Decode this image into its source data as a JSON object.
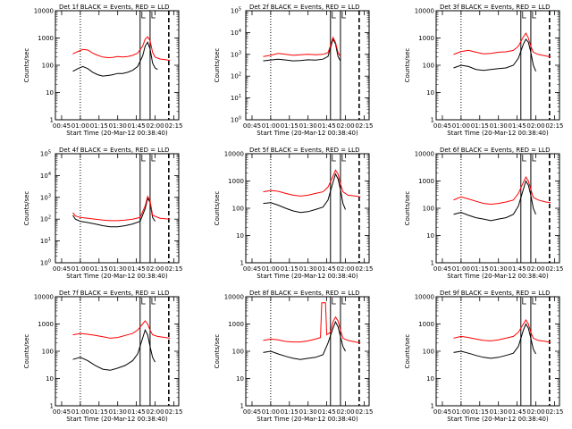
{
  "legend_suffix": "BLACK = Events, RED = LLD",
  "xlabel": "Start Time (20-Mar-12 00:38:40)",
  "ylabel": "Counts/sec",
  "xticks": [
    "00:45",
    "01:00",
    "01:15",
    "01:30",
    "01:45",
    "02:00",
    "02:15"
  ],
  "colors": {
    "events": "#000000",
    "lld": "#ff0000"
  },
  "chart_data": [
    {
      "type": "line",
      "title": "Det 1f",
      "xlabel": "Start Time (20-Mar-12 00:38:40)",
      "ylabel": "Counts/sec",
      "yscale": "log",
      "ylim": [
        1,
        10000
      ],
      "series": [
        {
          "name": "Events",
          "x": [
            54,
            58,
            62,
            66,
            70,
            74,
            78,
            82,
            86,
            90,
            94,
            98,
            102,
            106,
            110,
            112,
            114,
            116,
            118,
            120,
            122
          ],
          "y": [
            60,
            75,
            90,
            75,
            55,
            45,
            40,
            42,
            45,
            50,
            50,
            55,
            65,
            90,
            220,
            500,
            700,
            400,
            120,
            80,
            70
          ]
        },
        {
          "name": "LLD",
          "x": [
            54,
            58,
            62,
            66,
            70,
            74,
            78,
            82,
            86,
            90,
            94,
            98,
            102,
            106,
            110,
            112,
            114,
            116,
            118,
            120,
            124,
            128,
            132
          ],
          "y": [
            260,
            320,
            380,
            360,
            280,
            230,
            200,
            190,
            195,
            210,
            200,
            210,
            230,
            280,
            500,
            900,
            1100,
            800,
            300,
            200,
            170,
            160,
            150
          ]
        }
      ],
      "vlines_dotted": [
        60
      ],
      "vlines_solid": [
        108,
        116
      ],
      "vlines_dashed": [
        131
      ]
    },
    {
      "type": "line",
      "title": "Det 2f",
      "xlabel": "Start Time (20-Mar-12 00:38:40)",
      "ylabel": "Counts/sec",
      "yscale": "log",
      "ylim": [
        1,
        100000
      ],
      "series": [
        {
          "name": "Events",
          "x": [
            54,
            60,
            66,
            72,
            78,
            84,
            90,
            96,
            102,
            106,
            108,
            110,
            112,
            114,
            116
          ],
          "y": [
            500,
            550,
            600,
            550,
            500,
            520,
            560,
            540,
            600,
            800,
            2000,
            5000,
            3000,
            800,
            500
          ]
        },
        {
          "name": "LLD",
          "x": [
            54,
            60,
            66,
            72,
            78,
            84,
            90,
            96,
            102,
            106,
            108,
            110,
            112,
            114,
            116
          ],
          "y": [
            800,
            900,
            1100,
            1000,
            900,
            950,
            1000,
            950,
            1000,
            1200,
            2500,
            6000,
            3500,
            1200,
            800
          ]
        }
      ],
      "vlines_dotted": [
        60
      ],
      "vlines_solid": [
        108,
        116
      ],
      "vlines_dashed": [
        131
      ]
    },
    {
      "type": "line",
      "title": "Det 3f",
      "xlabel": "Start Time (20-Mar-12 00:38:40)",
      "ylabel": "Counts/sec",
      "yscale": "log",
      "ylim": [
        1,
        10000
      ],
      "series": [
        {
          "name": "Events",
          "x": [
            54,
            60,
            66,
            72,
            78,
            84,
            90,
            96,
            102,
            106,
            110,
            112,
            114,
            116,
            118,
            120
          ],
          "y": [
            80,
            100,
            90,
            70,
            65,
            70,
            75,
            80,
            100,
            180,
            600,
            900,
            700,
            300,
            100,
            60
          ]
        },
        {
          "name": "LLD",
          "x": [
            54,
            60,
            66,
            72,
            78,
            84,
            90,
            96,
            102,
            106,
            110,
            112,
            114,
            116,
            118,
            122,
            128,
            132
          ],
          "y": [
            250,
            320,
            350,
            300,
            260,
            270,
            300,
            310,
            350,
            500,
            1100,
            1500,
            1000,
            500,
            300,
            250,
            220,
            200
          ]
        }
      ],
      "vlines_dotted": [
        60
      ],
      "vlines_solid": [
        108,
        116
      ],
      "vlines_dashed": [
        131
      ]
    },
    {
      "type": "line",
      "title": "Det 4f",
      "xlabel": "Start Time (20-Mar-12 00:38:40)",
      "ylabel": "Counts/sec",
      "yscale": "log",
      "ylim": [
        1,
        100000
      ],
      "series": [
        {
          "name": "Events",
          "x": [
            54,
            56,
            60,
            66,
            72,
            78,
            84,
            90,
            96,
            102,
            108,
            112,
            114,
            116,
            118,
            120
          ],
          "y": [
            150,
            100,
            80,
            70,
            60,
            50,
            45,
            45,
            50,
            60,
            80,
            300,
            900,
            600,
            120,
            80
          ]
        },
        {
          "name": "LLD",
          "x": [
            54,
            56,
            60,
            66,
            72,
            78,
            84,
            90,
            96,
            102,
            108,
            112,
            114,
            116,
            118,
            124,
            132
          ],
          "y": [
            200,
            140,
            120,
            110,
            100,
            90,
            85,
            85,
            90,
            100,
            120,
            400,
            1100,
            700,
            150,
            110,
            100
          ]
        }
      ],
      "vlines_dotted": [
        60
      ],
      "vlines_solid": [
        108,
        116
      ],
      "vlines_dashed": [
        131
      ]
    },
    {
      "type": "line",
      "title": "Det 5f",
      "xlabel": "Start Time (20-Mar-12 00:38:40)",
      "ylabel": "Counts/sec",
      "yscale": "log",
      "ylim": [
        1,
        10000
      ],
      "series": [
        {
          "name": "Events",
          "x": [
            54,
            60,
            66,
            72,
            78,
            84,
            90,
            96,
            102,
            106,
            110,
            112,
            114,
            116,
            118,
            120
          ],
          "y": [
            150,
            160,
            130,
            100,
            80,
            70,
            75,
            90,
            110,
            200,
            900,
            1800,
            1200,
            500,
            150,
            90
          ]
        },
        {
          "name": "LLD",
          "x": [
            54,
            60,
            66,
            72,
            78,
            84,
            90,
            96,
            102,
            106,
            110,
            112,
            114,
            116,
            118,
            122,
            128,
            132
          ],
          "y": [
            400,
            450,
            420,
            350,
            300,
            280,
            300,
            350,
            400,
            600,
            1500,
            2500,
            1800,
            800,
            400,
            300,
            280,
            260
          ]
        }
      ],
      "vlines_dotted": [
        60
      ],
      "vlines_solid": [
        108,
        116
      ],
      "vlines_dashed": [
        131
      ]
    },
    {
      "type": "line",
      "title": "Det 6f",
      "xlabel": "Start Time (20-Mar-12 00:38:40)",
      "ylabel": "Counts/sec",
      "yscale": "log",
      "ylim": [
        1,
        10000
      ],
      "series": [
        {
          "name": "Events",
          "x": [
            54,
            60,
            66,
            72,
            78,
            84,
            90,
            96,
            102,
            106,
            110,
            112,
            114,
            116,
            118,
            120
          ],
          "y": [
            60,
            70,
            55,
            45,
            40,
            35,
            40,
            45,
            60,
            120,
            500,
            1000,
            700,
            300,
            100,
            60
          ]
        },
        {
          "name": "LLD",
          "x": [
            54,
            60,
            66,
            72,
            78,
            84,
            90,
            96,
            102,
            106,
            110,
            112,
            114,
            116,
            118,
            122,
            128,
            132
          ],
          "y": [
            200,
            260,
            220,
            180,
            150,
            140,
            150,
            170,
            200,
            350,
            900,
            1400,
            1000,
            500,
            250,
            200,
            170,
            160
          ]
        }
      ],
      "vlines_dotted": [
        60
      ],
      "vlines_solid": [
        108,
        116
      ],
      "vlines_dashed": [
        131
      ]
    },
    {
      "type": "line",
      "title": "Det 7f",
      "xlabel": "Start Time (20-Mar-12 00:38:40)",
      "ylabel": "Counts/sec",
      "yscale": "log",
      "ylim": [
        1,
        10000
      ],
      "series": [
        {
          "name": "Events",
          "x": [
            54,
            60,
            66,
            72,
            78,
            84,
            90,
            96,
            102,
            106,
            110,
            112,
            114,
            116,
            118,
            120
          ],
          "y": [
            50,
            60,
            45,
            30,
            22,
            20,
            24,
            30,
            45,
            80,
            300,
            600,
            400,
            150,
            60,
            40
          ]
        },
        {
          "name": "LLD",
          "x": [
            54,
            60,
            66,
            72,
            78,
            84,
            90,
            96,
            102,
            106,
            110,
            112,
            114,
            116,
            118,
            122,
            128,
            132
          ],
          "y": [
            400,
            450,
            420,
            380,
            340,
            300,
            320,
            380,
            450,
            600,
            1000,
            1300,
            1000,
            600,
            400,
            350,
            320,
            300
          ]
        }
      ],
      "vlines_dotted": [
        60
      ],
      "vlines_solid": [
        108,
        116
      ],
      "vlines_dashed": [
        131
      ]
    },
    {
      "type": "line",
      "title": "Det 8f",
      "xlabel": "Start Time (20-Mar-12 00:38:40)",
      "ylabel": "Counts/sec",
      "yscale": "log",
      "ylim": [
        1,
        10000
      ],
      "series": [
        {
          "name": "Events",
          "x": [
            54,
            60,
            66,
            72,
            78,
            84,
            90,
            96,
            102,
            106,
            110,
            112,
            114,
            116,
            118,
            120
          ],
          "y": [
            90,
            100,
            80,
            65,
            55,
            50,
            55,
            60,
            75,
            200,
            700,
            1200,
            800,
            350,
            150,
            100
          ]
        },
        {
          "name": "LLD",
          "x": [
            54,
            60,
            66,
            72,
            78,
            84,
            90,
            96,
            100,
            101,
            104,
            105,
            108,
            110,
            112,
            114,
            116,
            118,
            122,
            128,
            132
          ],
          "y": [
            250,
            280,
            260,
            230,
            220,
            220,
            240,
            280,
            320,
            6000,
            6000,
            400,
            500,
            1200,
            1800,
            1300,
            600,
            300,
            250,
            220,
            200
          ]
        }
      ],
      "vlines_dotted": [
        60
      ],
      "vlines_solid": [
        108,
        116
      ],
      "vlines_dashed": [
        131
      ]
    },
    {
      "type": "line",
      "title": "Det 9f",
      "xlabel": "Start Time (20-Mar-12 00:38:40)",
      "ylabel": "Counts/sec",
      "yscale": "log",
      "ylim": [
        1,
        10000
      ],
      "series": [
        {
          "name": "Events",
          "x": [
            54,
            60,
            66,
            72,
            78,
            84,
            90,
            96,
            102,
            106,
            110,
            112,
            114,
            116,
            118,
            120
          ],
          "y": [
            90,
            100,
            85,
            70,
            60,
            55,
            60,
            70,
            85,
            150,
            600,
            1000,
            700,
            300,
            120,
            80
          ]
        },
        {
          "name": "LLD",
          "x": [
            54,
            60,
            66,
            72,
            78,
            84,
            90,
            96,
            102,
            106,
            110,
            112,
            114,
            116,
            118,
            122,
            128,
            132
          ],
          "y": [
            300,
            350,
            320,
            280,
            250,
            240,
            260,
            300,
            350,
            500,
            1000,
            1400,
            1000,
            500,
            300,
            250,
            230,
            210
          ]
        }
      ],
      "vlines_dotted": [
        60
      ],
      "vlines_solid": [
        108,
        116
      ],
      "vlines_dashed": [
        131
      ]
    }
  ]
}
